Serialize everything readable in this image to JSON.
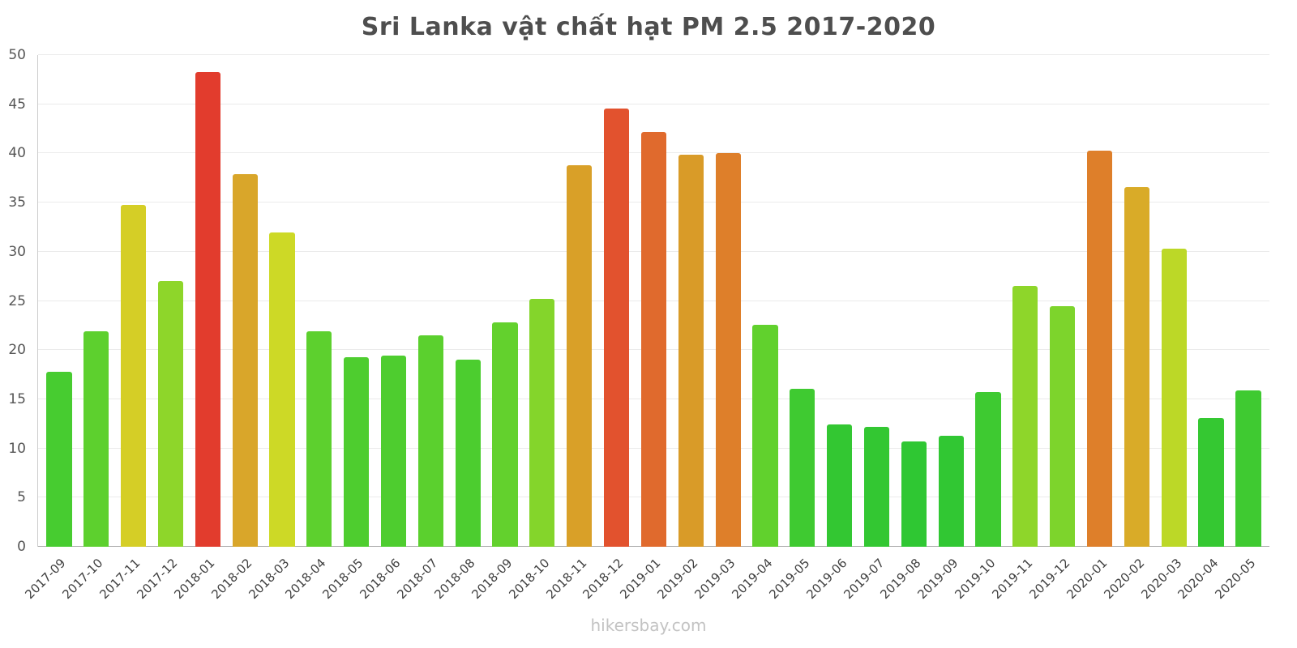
{
  "title": "Sri Lanka vật chất hạt PM 2.5 2017-2020",
  "footer": "hikersbay.com",
  "chart_data": {
    "type": "bar",
    "title": "Sri Lanka vật chất hạt PM 2.5 2017-2020",
    "xlabel": "",
    "ylabel": "",
    "ylim": [
      0,
      50
    ],
    "yticks": [
      0,
      5,
      10,
      15,
      20,
      25,
      30,
      35,
      40,
      45,
      50
    ],
    "grid": true,
    "legend": "none",
    "categories": [
      "2017-09",
      "2017-10",
      "2017-11",
      "2017-12",
      "2018-01",
      "2018-02",
      "2018-03",
      "2018-04",
      "2018-05",
      "2018-06",
      "2018-07",
      "2018-08",
      "2018-09",
      "2018-10",
      "2018-11",
      "2018-12",
      "2019-01",
      "2019-02",
      "2019-03",
      "2019-04",
      "2019-05",
      "2019-06",
      "2019-07",
      "2019-08",
      "2019-09",
      "2019-10",
      "2019-11",
      "2019-12",
      "2020-01",
      "2020-02",
      "2020-03",
      "2020-04",
      "2020-05"
    ],
    "values": [
      17.8,
      21.9,
      34.8,
      27.0,
      48.3,
      37.9,
      32.0,
      21.9,
      19.3,
      19.4,
      21.5,
      19.0,
      22.8,
      25.2,
      38.8,
      44.6,
      42.2,
      39.9,
      40.0,
      22.6,
      16.1,
      12.4,
      12.2,
      10.7,
      11.3,
      15.7,
      26.5,
      24.5,
      40.3,
      36.6,
      30.3,
      13.1,
      15.9
    ],
    "colors": [
      "#47cc30",
      "#5dd02e",
      "#d5ce26",
      "#8ed62a",
      "#e23c2d",
      "#d9a62a",
      "#cdd926",
      "#5dd02e",
      "#4ecd2f",
      "#4ecd2f",
      "#5bd02e",
      "#4ccd2f",
      "#63d12d",
      "#84d52b",
      "#d9a028",
      "#e2522e",
      "#e06a2d",
      "#d99b28",
      "#de7f2a",
      "#61d12d",
      "#3fca31",
      "#33c732",
      "#33c732",
      "#2fc733",
      "#31c733",
      "#3eca31",
      "#8ed62a",
      "#7dd42c",
      "#de7f2a",
      "#d9ab28",
      "#bcd827",
      "#35c832",
      "#3fca31"
    ]
  }
}
